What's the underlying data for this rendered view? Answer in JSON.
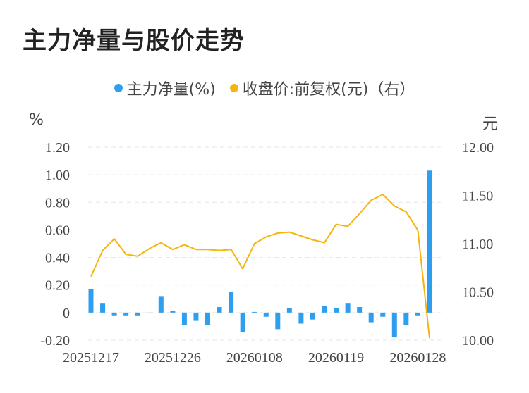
{
  "page": {
    "title": "主力净量与股价走势"
  },
  "colors": {
    "bar": "#2e9ff0",
    "line": "#f5b50f",
    "grid": "#e6e6e6",
    "text": "#444444"
  },
  "chart_data": {
    "type": "bar+line",
    "legend": [
      {
        "label": "主力净量(%)",
        "color": "#2e9ff0"
      },
      {
        "label": "收盘价:前复权(元)（右）",
        "color": "#f5b50f"
      }
    ],
    "left_axis": {
      "unit": "%",
      "ylim": [
        -0.2,
        1.2
      ],
      "ticks": [
        "1.20",
        "1.00",
        "0.80",
        "0.60",
        "0.40",
        "0.20",
        "0",
        "-0.20"
      ]
    },
    "right_axis": {
      "unit": "元",
      "ylim": [
        10.0,
        12.0
      ],
      "ticks": [
        "12.00",
        "11.50",
        "11.00",
        "10.50",
        "10.00"
      ]
    },
    "x_tick_labels": [
      "20251217",
      "20251226",
      "20260108",
      "20260119",
      "20260128"
    ],
    "x_tick_positions": [
      0,
      7,
      14,
      21,
      28
    ],
    "grid": true,
    "series": [
      {
        "name": "主力净量(%)",
        "type": "bar",
        "axis": "left",
        "values": [
          0.17,
          0.07,
          -0.02,
          -0.02,
          -0.02,
          0.0,
          0.12,
          0.01,
          -0.09,
          -0.06,
          -0.09,
          0.04,
          0.15,
          -0.14,
          0.005,
          -0.03,
          -0.12,
          0.03,
          -0.08,
          -0.05,
          0.05,
          0.03,
          0.07,
          0.04,
          -0.07,
          -0.03,
          -0.18,
          -0.09,
          -0.02,
          1.03
        ]
      },
      {
        "name": "收盘价:前复权(元)（右）",
        "type": "line",
        "axis": "right",
        "values": [
          10.66,
          10.93,
          11.05,
          10.89,
          10.87,
          10.95,
          11.01,
          10.94,
          10.99,
          10.94,
          10.94,
          10.93,
          10.94,
          10.74,
          11.0,
          11.07,
          11.11,
          11.12,
          11.08,
          11.04,
          11.01,
          11.2,
          11.18,
          11.31,
          11.45,
          11.51,
          11.39,
          11.33,
          11.14,
          10.02
        ]
      }
    ]
  }
}
